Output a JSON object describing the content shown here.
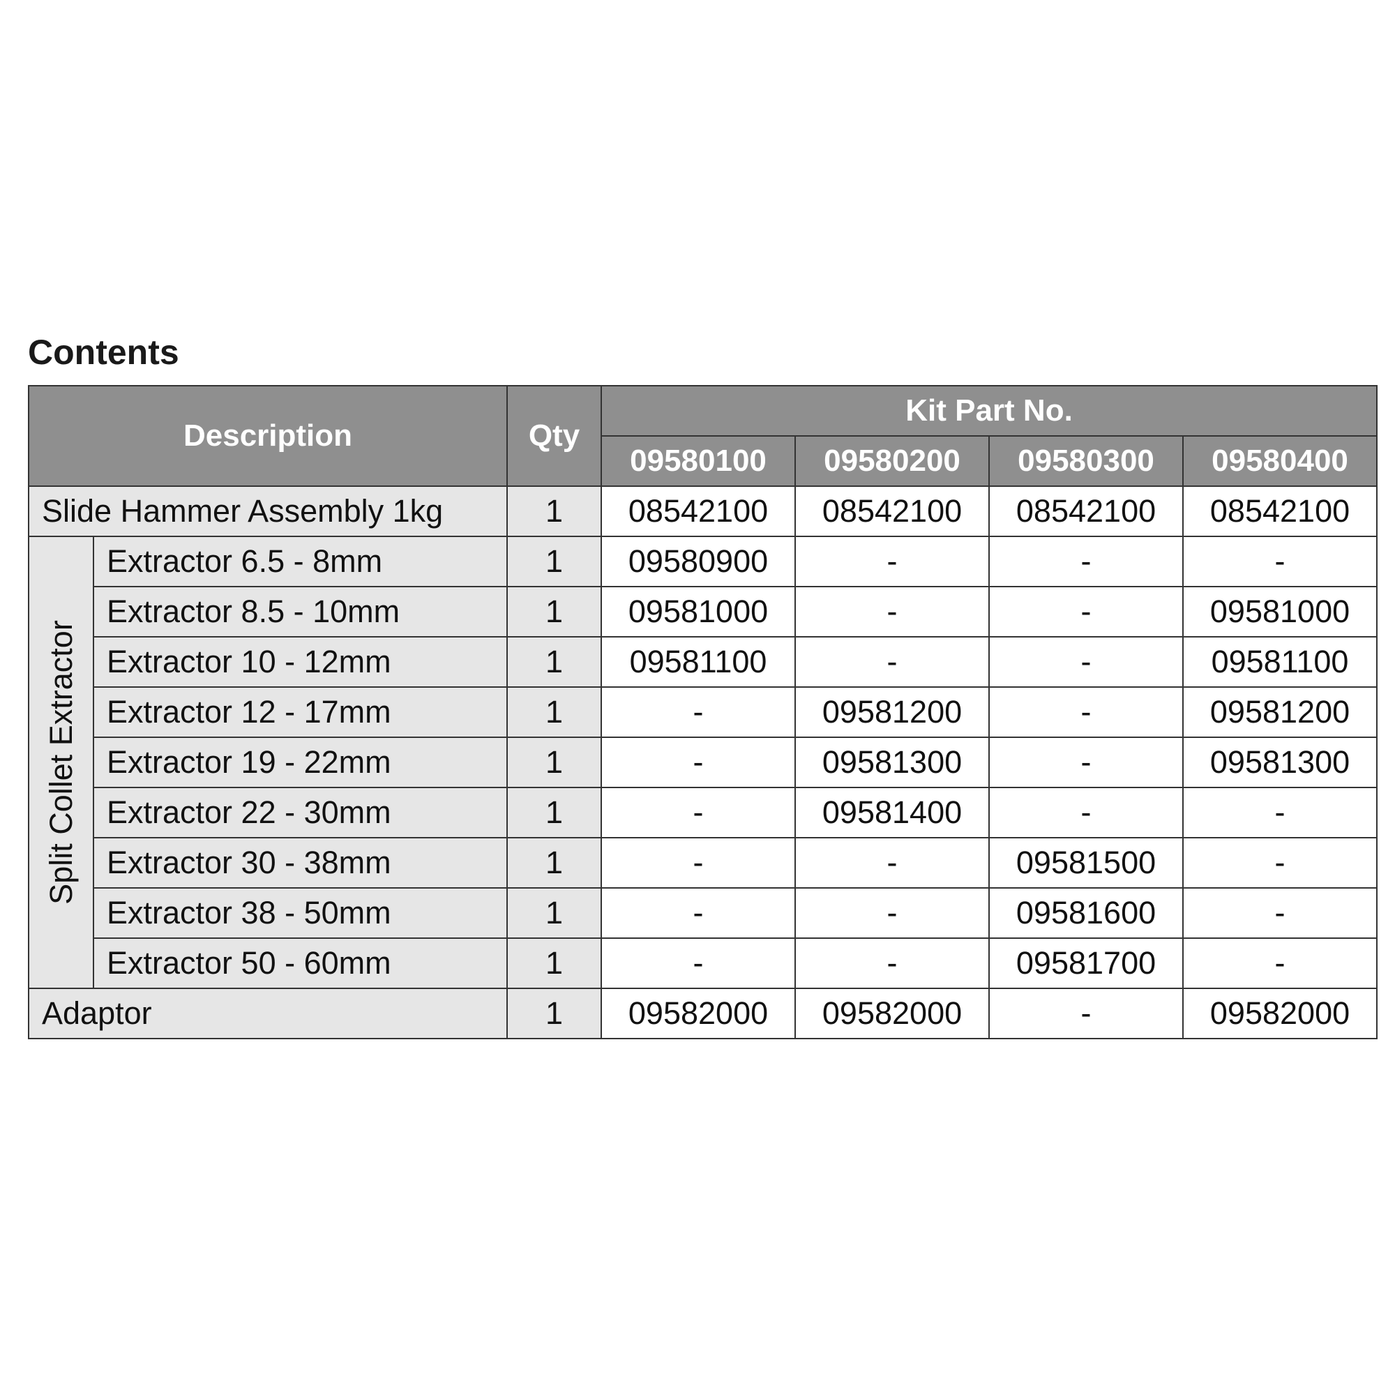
{
  "title": "Contents",
  "headers": {
    "description": "Description",
    "qty": "Qty",
    "kit_part_no": "Kit Part No.",
    "kits": [
      "09580100",
      "09580200",
      "09580300",
      "09580400"
    ]
  },
  "group_label": "Split Collet Extractor",
  "rows": [
    {
      "description": "Slide Hammer Assembly 1kg",
      "qty": "1",
      "parts": [
        "08542100",
        "08542100",
        "08542100",
        "08542100"
      ]
    },
    {
      "description": "Extractor 6.5 - 8mm",
      "qty": "1",
      "parts": [
        "09580900",
        "-",
        "-",
        "-"
      ]
    },
    {
      "description": "Extractor 8.5 - 10mm",
      "qty": "1",
      "parts": [
        "09581000",
        "-",
        "-",
        "09581000"
      ]
    },
    {
      "description": "Extractor 10 - 12mm",
      "qty": "1",
      "parts": [
        "09581100",
        "-",
        "-",
        "09581100"
      ]
    },
    {
      "description": "Extractor 12 - 17mm",
      "qty": "1",
      "parts": [
        "-",
        "09581200",
        "-",
        "09581200"
      ]
    },
    {
      "description": "Extractor 19 - 22mm",
      "qty": "1",
      "parts": [
        "-",
        "09581300",
        "-",
        "09581300"
      ]
    },
    {
      "description": "Extractor 22 - 30mm",
      "qty": "1",
      "parts": [
        "-",
        "09581400",
        "-",
        "-"
      ]
    },
    {
      "description": "Extractor 30 - 38mm",
      "qty": "1",
      "parts": [
        "-",
        "-",
        "09581500",
        "-"
      ]
    },
    {
      "description": "Extractor 38 - 50mm",
      "qty": "1",
      "parts": [
        "-",
        "-",
        "09581600",
        "-"
      ]
    },
    {
      "description": "Extractor 50 - 60mm",
      "qty": "1",
      "parts": [
        "-",
        "-",
        "09581700",
        "-"
      ]
    },
    {
      "description": "Adaptor",
      "qty": "1",
      "parts": [
        "09582000",
        "09582000",
        "-",
        "09582000"
      ]
    }
  ],
  "colors": {
    "header_bg": "#8f8f8f",
    "desc_bg": "#e6e6e6",
    "border": "#333333"
  }
}
